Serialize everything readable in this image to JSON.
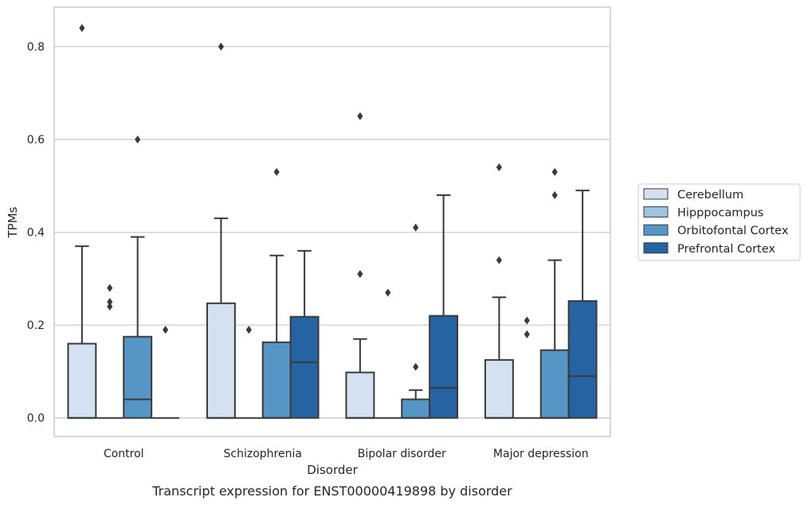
{
  "caption": "Transcript expression for ENST00000419898 by disorder",
  "chart_data": {
    "type": "box",
    "xlabel": "Disorder",
    "ylabel": "TPMs",
    "ylim": [
      -0.04,
      0.885
    ],
    "yticks": [
      0.0,
      0.2,
      0.4,
      0.6,
      0.8
    ],
    "ytick_labels": [
      "0.0",
      "0.2",
      "0.4",
      "0.6",
      "0.8"
    ],
    "grid": "horizontal",
    "legend_position": "right",
    "categories": [
      "Control",
      "Schizophrenia",
      "Bipolar disorder",
      "Major depression"
    ],
    "series": [
      {
        "name": "Cerebellum",
        "color": "#d3e1f0",
        "boxes": [
          {
            "q1": 0.0,
            "median": 0.0,
            "q3": 0.16,
            "whisker_low": 0.0,
            "whisker_high": 0.37,
            "outliers": [
              0.84
            ]
          },
          {
            "q1": 0.0,
            "median": 0.0,
            "q3": 0.247,
            "whisker_low": 0.0,
            "whisker_high": 0.43,
            "outliers": [
              0.8
            ]
          },
          {
            "q1": 0.0,
            "median": 0.0,
            "q3": 0.098,
            "whisker_low": 0.0,
            "whisker_high": 0.17,
            "outliers": [
              0.31,
              0.65
            ]
          },
          {
            "q1": 0.0,
            "median": 0.0,
            "q3": 0.125,
            "whisker_low": 0.0,
            "whisker_high": 0.26,
            "outliers": [
              0.34,
              0.54
            ]
          }
        ]
      },
      {
        "name": "Hipppocampus",
        "color": "#9ec4dd",
        "boxes": [
          {
            "q1": 0.0,
            "median": 0.0,
            "q3": 0.0,
            "whisker_low": 0.0,
            "whisker_high": 0.0,
            "outliers": [
              0.24,
              0.25,
              0.28
            ]
          },
          {
            "q1": 0.0,
            "median": 0.0,
            "q3": 0.0,
            "whisker_low": 0.0,
            "whisker_high": 0.0,
            "outliers": [
              0.19
            ]
          },
          {
            "q1": 0.0,
            "median": 0.0,
            "q3": 0.0,
            "whisker_low": 0.0,
            "whisker_high": 0.0,
            "outliers": [
              0.27
            ]
          },
          {
            "q1": 0.0,
            "median": 0.0,
            "q3": 0.0,
            "whisker_low": 0.0,
            "whisker_high": 0.0,
            "outliers": [
              0.18,
              0.21
            ]
          }
        ]
      },
      {
        "name": "Orbitofontal Cortex",
        "color": "#5596c6",
        "boxes": [
          {
            "q1": 0.0,
            "median": 0.04,
            "q3": 0.175,
            "whisker_low": 0.0,
            "whisker_high": 0.39,
            "outliers": [
              0.6
            ]
          },
          {
            "q1": 0.0,
            "median": 0.0,
            "q3": 0.163,
            "whisker_low": 0.0,
            "whisker_high": 0.35,
            "outliers": [
              0.53
            ]
          },
          {
            "q1": 0.0,
            "median": 0.0,
            "q3": 0.04,
            "whisker_low": 0.0,
            "whisker_high": 0.06,
            "outliers": [
              0.11,
              0.41
            ]
          },
          {
            "q1": 0.0,
            "median": 0.0,
            "q3": 0.146,
            "whisker_low": 0.0,
            "whisker_high": 0.34,
            "outliers": [
              0.48,
              0.53
            ]
          }
        ]
      },
      {
        "name": "Prefrontal Cortex",
        "color": "#2563a3",
        "boxes": [
          {
            "q1": 0.0,
            "median": 0.0,
            "q3": 0.0,
            "whisker_low": 0.0,
            "whisker_high": 0.0,
            "outliers": [
              0.19
            ]
          },
          {
            "q1": 0.0,
            "median": 0.12,
            "q3": 0.218,
            "whisker_low": 0.0,
            "whisker_high": 0.36,
            "outliers": []
          },
          {
            "q1": 0.0,
            "median": 0.065,
            "q3": 0.22,
            "whisker_low": 0.0,
            "whisker_high": 0.48,
            "outliers": []
          },
          {
            "q1": 0.0,
            "median": 0.09,
            "q3": 0.252,
            "whisker_low": 0.0,
            "whisker_high": 0.49,
            "outliers": []
          }
        ]
      }
    ]
  }
}
